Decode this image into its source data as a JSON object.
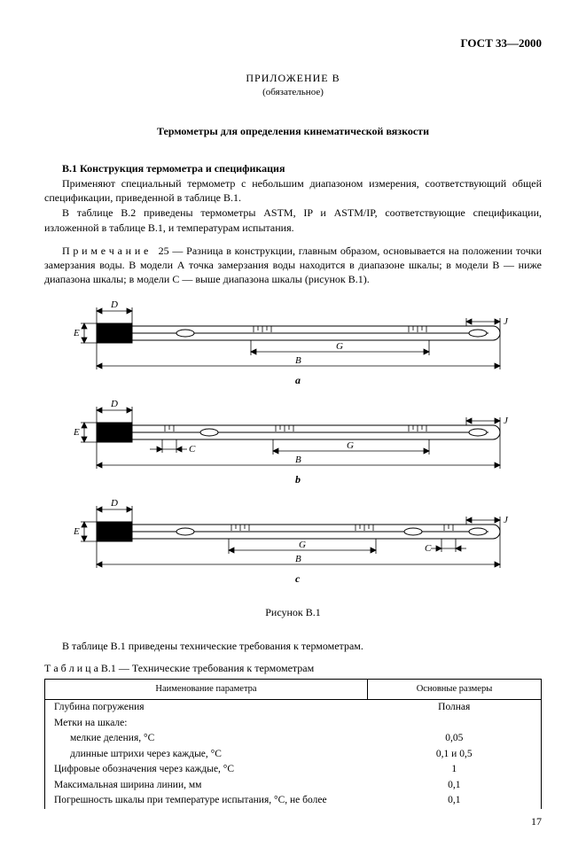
{
  "header": {
    "standard": "ГОСТ 33—2000"
  },
  "appendix": {
    "title": "ПРИЛОЖЕНИЕ В",
    "subtitle": "(обязательное)"
  },
  "docTitle": "Термометры для определения кинематической вязкости",
  "section": {
    "num": "В.1",
    "heading": "Конструкция термометра и спецификация",
    "p1": "Применяют специальный термометр с небольшим диапазоном измерения, соответствующий общей спецификации, приведенной в таблице В.1.",
    "p2": "В таблице В.2 приведены термометры ASTM, IP и ASTM/IP, соответствующие спецификации, изложенной в таблице В.1, и температурам испытания."
  },
  "note": {
    "label": "П р и м е ч а н и е",
    "num": "25",
    "text": "— Разница в конструкции, главным образом, основывается на положении точки замерзания воды. В модели А точка замерзания воды находится в диапазоне шкалы; в модели В — ниже диапазона шкалы; в модели С — выше диапазона шкалы (рисунок В.1)."
  },
  "figure": {
    "caption": "Рисунок В.1",
    "labels": {
      "a": "а",
      "b": "b",
      "c": "c",
      "B": "В",
      "C": "С",
      "D": "D",
      "G": "G",
      "J": "J",
      "E": "E"
    }
  },
  "tableIntro": "В таблице В.1 приведены технические требования к термометрам.",
  "tableTitle": "Т а б л и ц а   В.1 — Технические требования к термометрам",
  "table": {
    "col1": "Наименование параметра",
    "col2": "Основные размеры",
    "rows": [
      {
        "name": "Глубина погружения",
        "val": "Полная"
      },
      {
        "name": "Метки на шкале:",
        "val": ""
      },
      {
        "name": "мелкие деления, °С",
        "val": "0,05",
        "sub": true
      },
      {
        "name": "длинные штрихи через каждые, °С",
        "val": "0,1 и 0,5",
        "sub": true
      },
      {
        "name": "Цифровые обозначения через каждые, °С",
        "val": "1"
      },
      {
        "name": "Максимальная ширина линии, мм",
        "val": "0,1"
      },
      {
        "name": "Погрешность шкалы при температуре испытания, °С, не более",
        "val": "0,1"
      }
    ]
  },
  "pageNum": "17"
}
